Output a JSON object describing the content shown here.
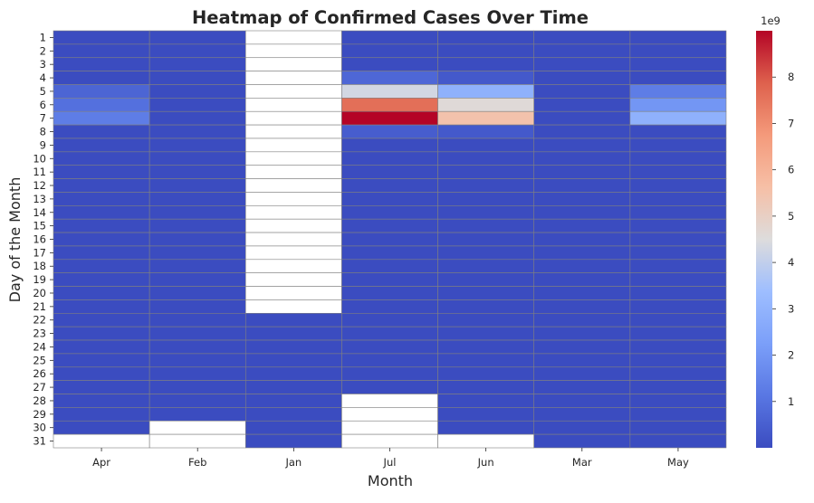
{
  "chart_data": {
    "type": "heatmap",
    "title": "Heatmap of Confirmed Cases Over Time",
    "xlabel": "Month",
    "ylabel": "Day of the Month",
    "x_categories": [
      "Apr",
      "Feb",
      "Jan",
      "Jul",
      "Jun",
      "Mar",
      "May"
    ],
    "y_categories": [
      "1",
      "2",
      "3",
      "4",
      "5",
      "6",
      "7",
      "8",
      "9",
      "10",
      "11",
      "12",
      "13",
      "14",
      "15",
      "16",
      "17",
      "18",
      "19",
      "20",
      "21",
      "22",
      "23",
      "24",
      "25",
      "26",
      "27",
      "28",
      "29",
      "30",
      "31"
    ],
    "colormap": "coolwarm",
    "color_range": [
      0,
      9000000000
    ],
    "colorbar": {
      "offset_label": "1e9",
      "ticks": [
        1,
        2,
        3,
        4,
        5,
        6,
        7,
        8
      ],
      "tick_scale": 1000000000
    },
    "missing_color": "#ffffff",
    "grid_line_color": "#808080",
    "values": {
      "Apr": [
        0,
        0,
        0,
        0,
        650000000,
        950000000,
        1300000000,
        0,
        0,
        0,
        0,
        0,
        0,
        0,
        0,
        0,
        0,
        0,
        0,
        0,
        0,
        0,
        0,
        0,
        0,
        0,
        0,
        0,
        0,
        0,
        null
      ],
      "Feb": [
        0,
        0,
        0,
        0,
        0,
        0,
        0,
        0,
        0,
        0,
        0,
        0,
        0,
        0,
        0,
        0,
        0,
        0,
        0,
        0,
        0,
        0,
        0,
        0,
        0,
        0,
        0,
        0,
        0,
        null,
        null
      ],
      "Jan": [
        null,
        null,
        null,
        null,
        null,
        null,
        null,
        null,
        null,
        null,
        null,
        null,
        null,
        null,
        null,
        null,
        null,
        null,
        null,
        null,
        null,
        0,
        0,
        0,
        0,
        0,
        0,
        0,
        0,
        0,
        0
      ],
      "Jul": [
        0,
        0,
        0,
        700000000,
        4300000000,
        7600000000,
        9000000000,
        450000000,
        0,
        0,
        0,
        0,
        0,
        0,
        0,
        0,
        0,
        0,
        0,
        0,
        0,
        0,
        0,
        0,
        0,
        0,
        0,
        null,
        null,
        null,
        null
      ],
      "Jun": [
        0,
        0,
        0,
        350000000,
        2900000000,
        4600000000,
        5500000000,
        350000000,
        0,
        0,
        0,
        0,
        0,
        0,
        0,
        0,
        0,
        0,
        0,
        0,
        0,
        0,
        0,
        0,
        0,
        0,
        0,
        0,
        0,
        0,
        null
      ],
      "Mar": [
        0,
        0,
        0,
        0,
        0,
        0,
        0,
        0,
        0,
        0,
        0,
        0,
        0,
        0,
        0,
        0,
        0,
        0,
        0,
        0,
        0,
        0,
        0,
        0,
        0,
        0,
        0,
        0,
        0,
        0,
        0
      ],
      "May": [
        0,
        0,
        0,
        0,
        1300000000,
        2000000000,
        2900000000,
        0,
        0,
        0,
        0,
        0,
        0,
        0,
        0,
        0,
        0,
        0,
        0,
        0,
        0,
        0,
        0,
        0,
        0,
        0,
        0,
        0,
        0,
        0,
        0
      ]
    }
  }
}
